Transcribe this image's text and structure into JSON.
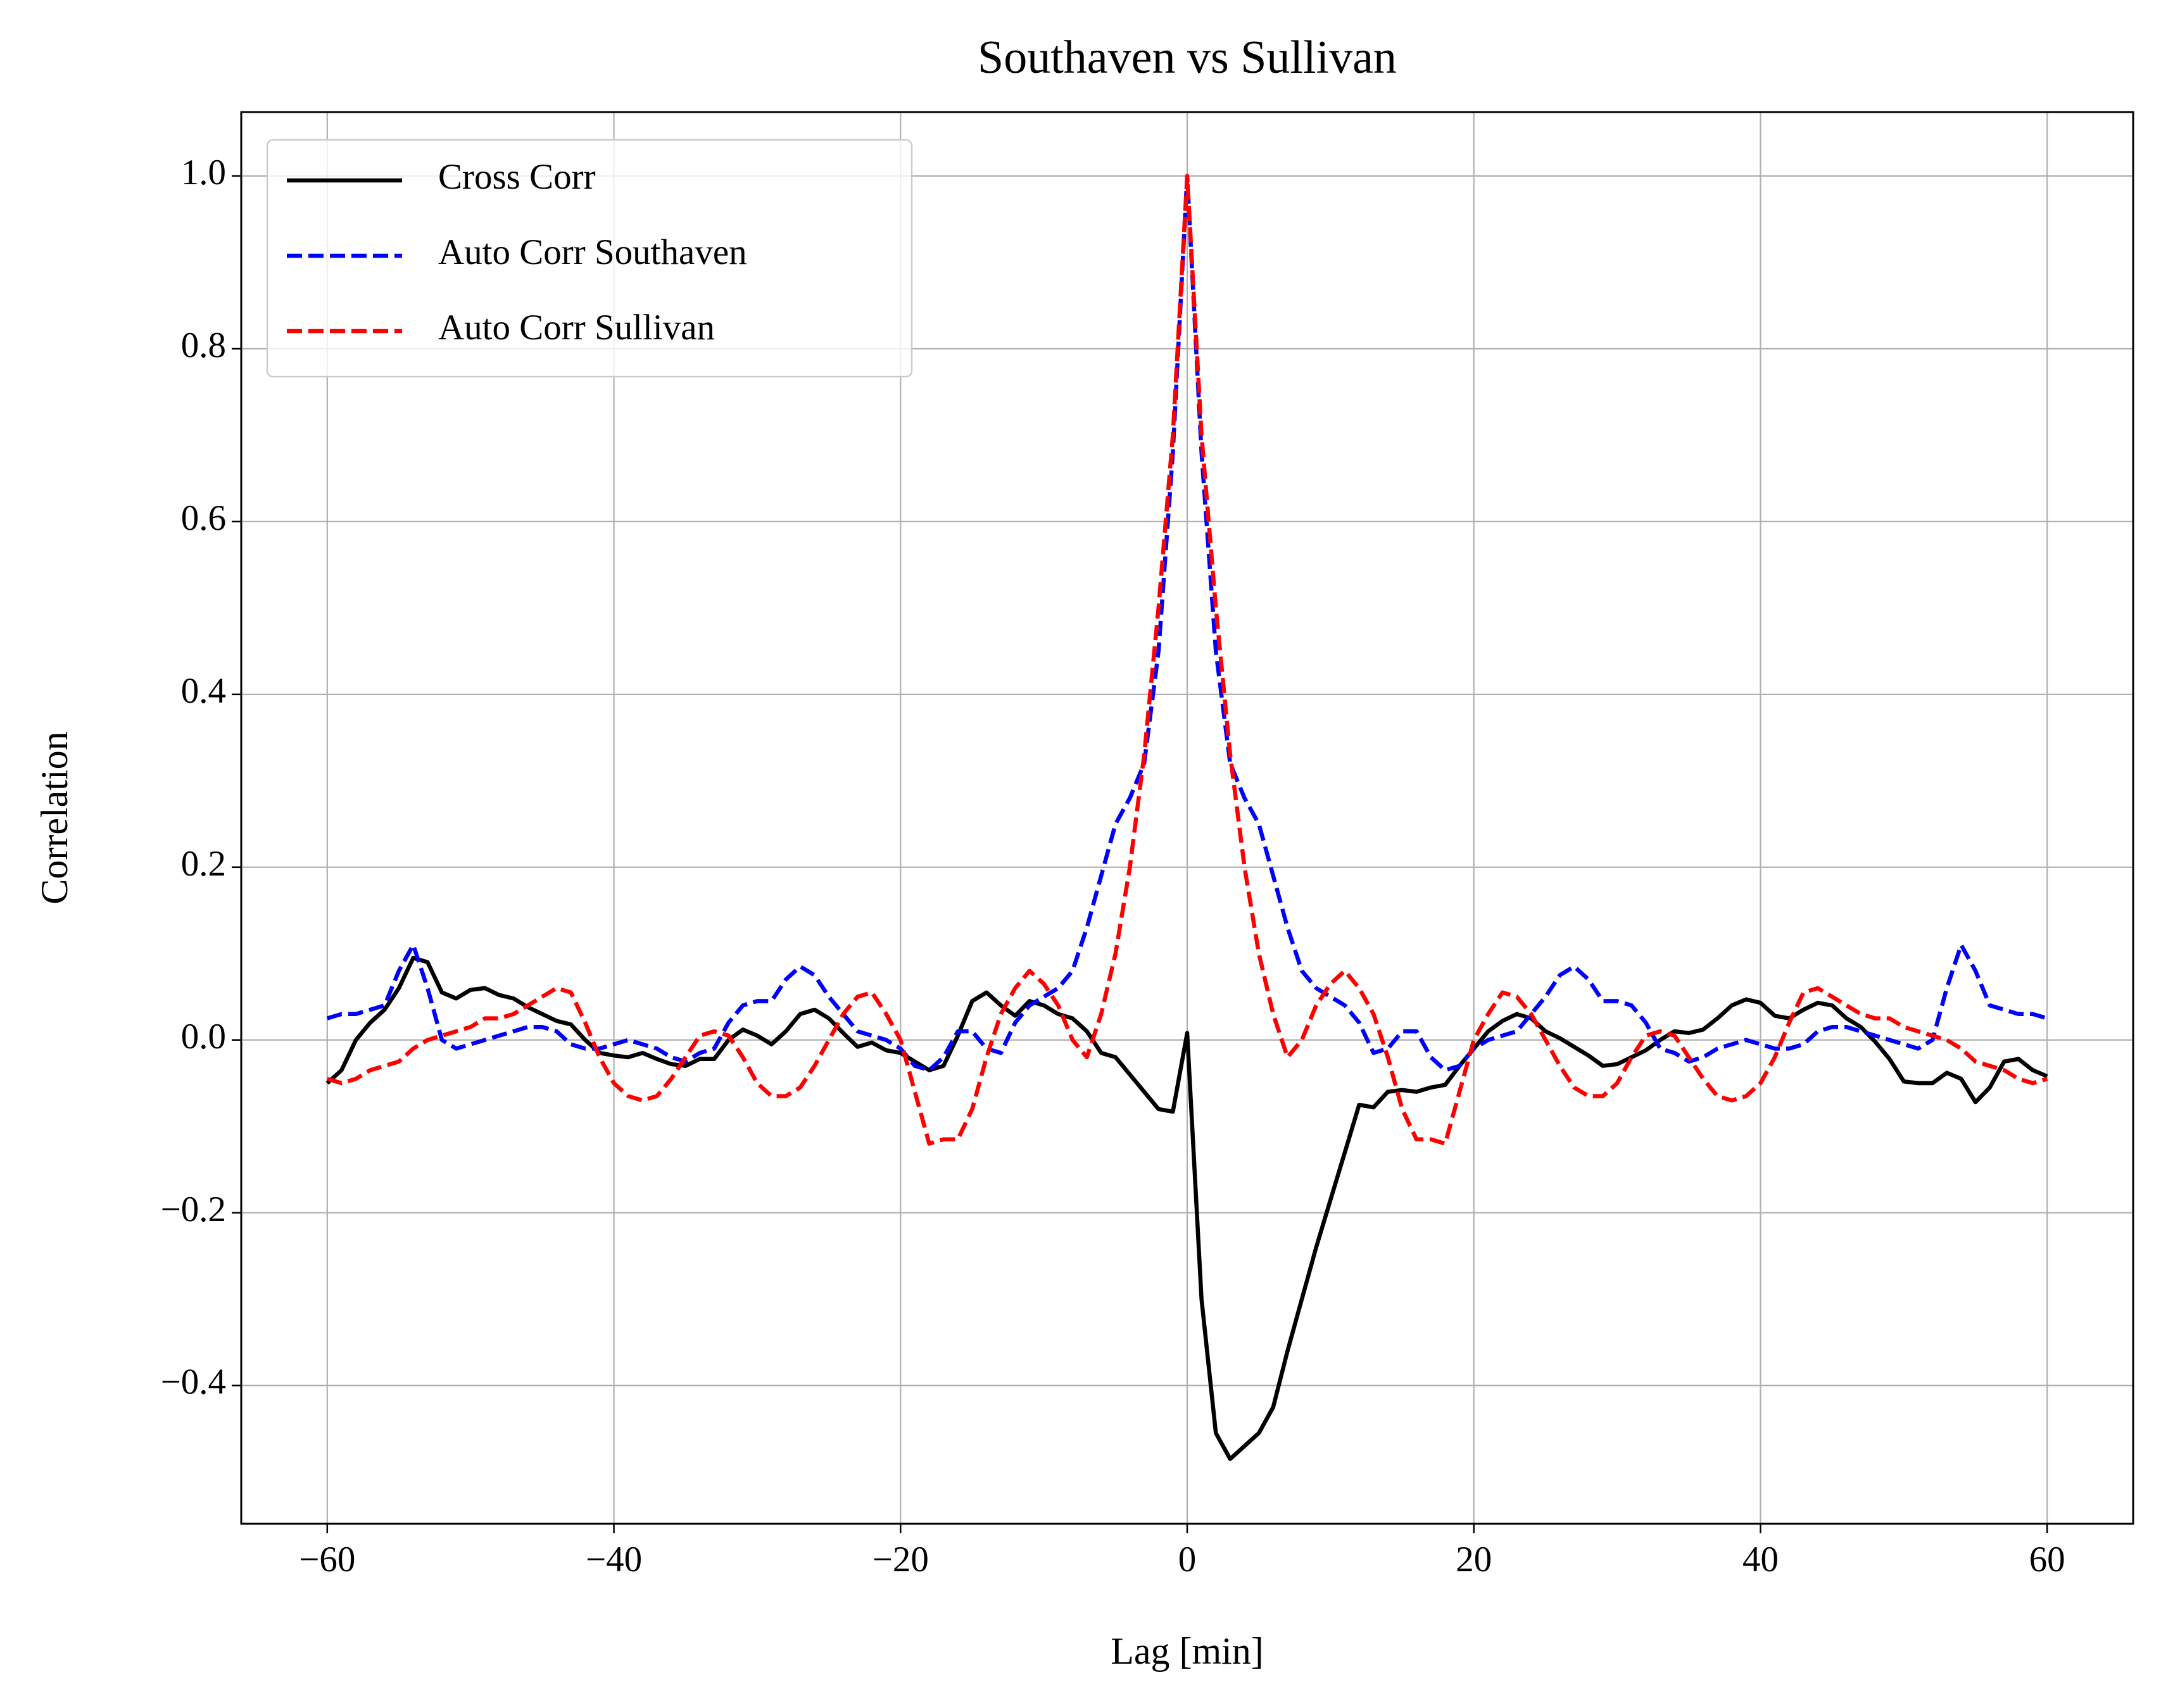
{
  "chart_data": {
    "type": "line",
    "title": "Southaven vs Sullivan",
    "x_label": "Lag [min]",
    "y_label": "Correlation",
    "x": [
      -60,
      -59,
      -58,
      -57,
      -56,
      -55,
      -54,
      -53,
      -52,
      -51,
      -50,
      -49,
      -48,
      -47,
      -46,
      -45,
      -44,
      -43,
      -42,
      -41,
      -40,
      -39,
      -38,
      -37,
      -36,
      -35,
      -34,
      -33,
      -32,
      -31,
      -30,
      -29,
      -28,
      -27,
      -26,
      -25,
      -24,
      -23,
      -22,
      -21,
      -20,
      -19,
      -18,
      -17,
      -16,
      -15,
      -14,
      -13,
      -12,
      -11,
      -10,
      -9,
      -8,
      -7,
      -6,
      -5,
      -4,
      -3,
      -2,
      -1,
      0,
      1,
      2,
      3,
      4,
      5,
      6,
      7,
      8,
      9,
      10,
      11,
      12,
      13,
      14,
      15,
      16,
      17,
      18,
      19,
      20,
      21,
      22,
      23,
      24,
      25,
      26,
      27,
      28,
      29,
      30,
      31,
      32,
      33,
      34,
      35,
      36,
      37,
      38,
      39,
      40,
      41,
      42,
      43,
      44,
      45,
      46,
      47,
      48,
      49,
      50,
      51,
      52,
      53,
      54,
      55,
      56,
      57,
      58,
      59,
      60
    ],
    "series": [
      {
        "name": "Cross Corr",
        "color": "#000000",
        "dashed": false,
        "values": [
          -0.05,
          -0.035,
          0.0,
          0.02,
          0.035,
          0.06,
          0.095,
          0.09,
          0.055,
          0.048,
          0.058,
          0.06,
          0.052,
          0.048,
          0.038,
          0.03,
          0.022,
          0.018,
          0.0,
          -0.015,
          -0.018,
          -0.02,
          -0.015,
          -0.022,
          -0.028,
          -0.03,
          -0.022,
          -0.022,
          0.0,
          0.012,
          0.005,
          -0.005,
          0.01,
          0.03,
          0.035,
          0.025,
          0.008,
          -0.008,
          -0.003,
          -0.012,
          -0.015,
          -0.025,
          -0.035,
          -0.03,
          0.005,
          0.045,
          0.055,
          0.04,
          0.028,
          0.045,
          0.04,
          0.03,
          0.025,
          0.01,
          -0.015,
          -0.02,
          -0.04,
          -0.06,
          -0.08,
          -0.083,
          0.008,
          -0.3,
          -0.455,
          -0.485,
          -0.47,
          -0.455,
          -0.425,
          -0.36,
          -0.3,
          -0.24,
          -0.185,
          -0.13,
          -0.075,
          -0.078,
          -0.06,
          -0.058,
          -0.06,
          -0.055,
          -0.052,
          -0.03,
          -0.01,
          0.01,
          0.022,
          0.03,
          0.025,
          0.01,
          0.002,
          -0.008,
          -0.018,
          -0.03,
          -0.028,
          -0.02,
          -0.012,
          0.0,
          0.01,
          0.008,
          0.012,
          0.025,
          0.04,
          0.047,
          0.043,
          0.028,
          0.025,
          0.035,
          0.043,
          0.04,
          0.025,
          0.015,
          -0.002,
          -0.022,
          -0.048,
          -0.05,
          -0.05,
          -0.038,
          -0.045,
          -0.072,
          -0.055,
          -0.025,
          -0.022,
          -0.035,
          -0.042
        ]
      },
      {
        "name": "Auto Corr Southaven",
        "color": "#0000ff",
        "dashed": true,
        "values": [
          0.025,
          0.03,
          0.03,
          0.035,
          0.04,
          0.08,
          0.11,
          0.06,
          0.0,
          -0.01,
          -0.005,
          0.0,
          0.005,
          0.01,
          0.015,
          0.015,
          0.01,
          -0.005,
          -0.01,
          -0.01,
          -0.005,
          0.0,
          -0.005,
          -0.01,
          -0.02,
          -0.025,
          -0.015,
          -0.01,
          0.02,
          0.04,
          0.045,
          0.045,
          0.07,
          0.085,
          0.075,
          0.05,
          0.03,
          0.01,
          0.005,
          0.0,
          -0.01,
          -0.03,
          -0.035,
          -0.02,
          0.01,
          0.01,
          -0.01,
          -0.015,
          0.02,
          0.04,
          0.05,
          0.06,
          0.08,
          0.13,
          0.19,
          0.25,
          0.28,
          0.32,
          0.45,
          0.68,
          1.0,
          0.68,
          0.45,
          0.32,
          0.28,
          0.25,
          0.19,
          0.13,
          0.08,
          0.06,
          0.05,
          0.04,
          0.02,
          -0.015,
          -0.01,
          0.01,
          0.01,
          -0.02,
          -0.035,
          -0.03,
          -0.01,
          0.0,
          0.005,
          0.01,
          0.03,
          0.05,
          0.075,
          0.085,
          0.07,
          0.045,
          0.045,
          0.04,
          0.02,
          -0.01,
          -0.015,
          -0.025,
          -0.02,
          -0.01,
          -0.005,
          0.0,
          -0.005,
          -0.01,
          -0.01,
          -0.005,
          0.01,
          0.015,
          0.015,
          0.01,
          0.005,
          0.0,
          -0.005,
          -0.01,
          0.0,
          0.06,
          0.11,
          0.08,
          0.04,
          0.035,
          0.03,
          0.03,
          0.025
        ]
      },
      {
        "name": "Auto Corr Sullivan",
        "color": "#ff0000",
        "dashed": true,
        "values": [
          -0.045,
          -0.05,
          -0.045,
          -0.035,
          -0.03,
          -0.025,
          -0.01,
          0.0,
          0.005,
          0.01,
          0.015,
          0.025,
          0.025,
          0.03,
          0.04,
          0.05,
          0.06,
          0.055,
          0.02,
          -0.02,
          -0.05,
          -0.065,
          -0.07,
          -0.065,
          -0.045,
          -0.02,
          0.005,
          0.01,
          0.005,
          -0.02,
          -0.05,
          -0.065,
          -0.065,
          -0.055,
          -0.03,
          0.0,
          0.03,
          0.05,
          0.055,
          0.03,
          0.0,
          -0.06,
          -0.12,
          -0.115,
          -0.115,
          -0.08,
          -0.02,
          0.03,
          0.06,
          0.08,
          0.065,
          0.04,
          0.0,
          -0.02,
          0.03,
          0.1,
          0.2,
          0.33,
          0.5,
          0.7,
          1.0,
          0.7,
          0.5,
          0.33,
          0.2,
          0.1,
          0.03,
          -0.02,
          0.0,
          0.04,
          0.065,
          0.08,
          0.06,
          0.03,
          -0.02,
          -0.08,
          -0.115,
          -0.115,
          -0.12,
          -0.06,
          0.0,
          0.03,
          0.055,
          0.05,
          0.03,
          0.0,
          -0.03,
          -0.055,
          -0.065,
          -0.065,
          -0.05,
          -0.02,
          0.005,
          0.01,
          0.005,
          -0.02,
          -0.045,
          -0.065,
          -0.07,
          -0.065,
          -0.05,
          -0.02,
          0.02,
          0.055,
          0.06,
          0.05,
          0.04,
          0.03,
          0.025,
          0.025,
          0.015,
          0.01,
          0.005,
          0.0,
          -0.01,
          -0.025,
          -0.03,
          -0.035,
          -0.045,
          -0.05,
          -0.045
        ]
      }
    ],
    "xlim": [
      -66,
      66
    ],
    "ylim": [
      -0.56,
      1.074
    ],
    "xticks": [
      {
        "value": -60,
        "label": "−60"
      },
      {
        "value": -40,
        "label": "−40"
      },
      {
        "value": -20,
        "label": "−20"
      },
      0,
      20,
      40,
      60
    ],
    "yticks": [
      {
        "value": -0.4,
        "label": "−0.4"
      },
      {
        "value": -0.2,
        "label": "−0.2"
      },
      {
        "value": 0,
        "label": "0.0"
      },
      0.2,
      0.4,
      0.6,
      0.8,
      {
        "value": 1,
        "label": "1.0"
      }
    ],
    "grid": true,
    "legend": "upper left"
  }
}
